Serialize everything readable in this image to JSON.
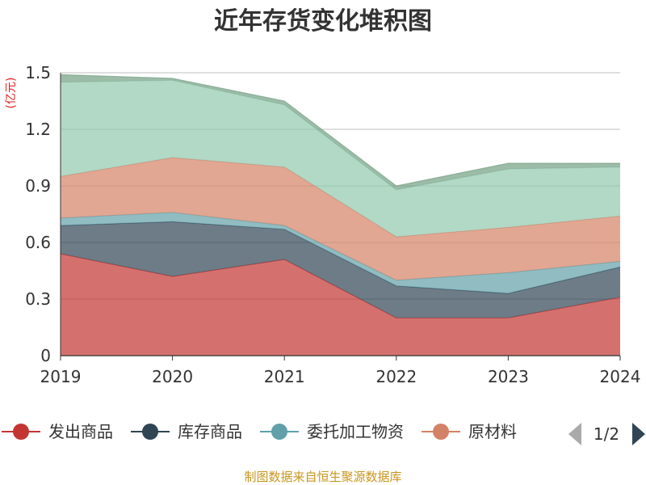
{
  "chart_data": {
    "type": "area",
    "title": "近年存货变化堆积图",
    "unit_label": "(亿元)",
    "x": [
      "2019",
      "2020",
      "2021",
      "2022",
      "2023",
      "2024"
    ],
    "y_ticks": [
      "0",
      "0.3",
      "0.6",
      "0.9",
      "1.2",
      "1.5"
    ],
    "ylim": [
      0,
      1.5
    ],
    "stacked": true,
    "grid": true,
    "series": [
      {
        "name": "发出商品",
        "color": "#c23531",
        "values": [
          0.54,
          0.42,
          0.51,
          0.2,
          0.2,
          0.31
        ]
      },
      {
        "name": "库存商品",
        "color": "#2f4554",
        "values": [
          0.15,
          0.29,
          0.16,
          0.17,
          0.13,
          0.16
        ]
      },
      {
        "name": "委托加工物资",
        "color": "#61a0a8",
        "values": [
          0.04,
          0.05,
          0.02,
          0.03,
          0.11,
          0.03
        ]
      },
      {
        "name": "原材料",
        "color": "#d48265",
        "values": [
          0.22,
          0.29,
          0.31,
          0.23,
          0.24,
          0.24
        ]
      },
      {
        "color": "#91c7ae",
        "values": [
          0.5,
          0.41,
          0.33,
          0.25,
          0.31,
          0.26
        ]
      },
      {
        "color": "#749f83",
        "values": [
          0.04,
          0.01,
          0.02,
          0.02,
          0.03,
          0.02
        ]
      }
    ],
    "legend": {
      "position": "bottom",
      "visible_items": [
        "发出商品",
        "库存商品",
        "委托加工物资",
        "原材料"
      ],
      "page": "1/2"
    }
  },
  "source": "制图数据来自恒生聚源数据库"
}
